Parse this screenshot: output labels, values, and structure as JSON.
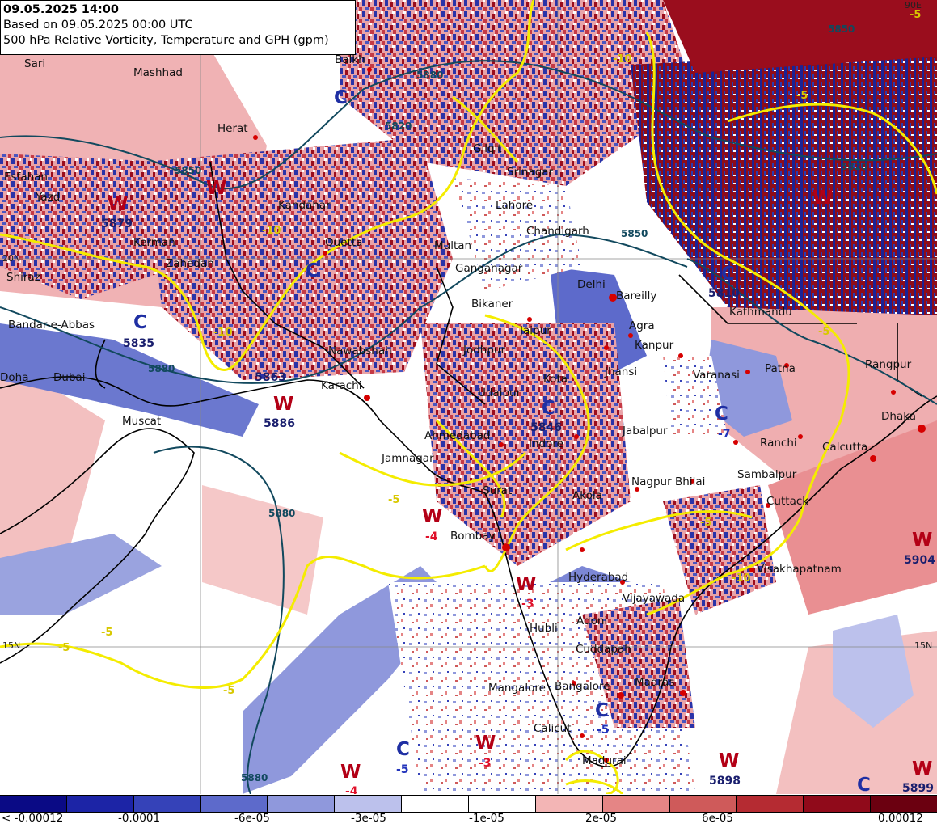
{
  "header": {
    "valid_time": "09.05.2025 14:00",
    "based_on": "Based on 09.05.2025 00:00 UTC",
    "product": "500 hPa Relative Vorticity, Temperature and GPH (gpm)"
  },
  "cities": [
    {
      "name": "Sari"
    },
    {
      "name": "Mashhad"
    },
    {
      "name": "Balkh"
    },
    {
      "name": "Herat"
    },
    {
      "name": "Esfahan"
    },
    {
      "name": "Yazd"
    },
    {
      "name": "Kandahar"
    },
    {
      "name": "Kerman"
    },
    {
      "name": "Quetta"
    },
    {
      "name": "Zahedan"
    },
    {
      "name": "Shiraz"
    },
    {
      "name": "Multan"
    },
    {
      "name": "Lahore"
    },
    {
      "name": "Chandigarh"
    },
    {
      "name": "Srinagar"
    },
    {
      "name": "Gilgit"
    },
    {
      "name": "Ganganagar"
    },
    {
      "name": "Bikaner"
    },
    {
      "name": "Delhi"
    },
    {
      "name": "Bareilly"
    },
    {
      "name": "Kathmandu"
    },
    {
      "name": "Bandar-e-Abbas"
    },
    {
      "name": "Nawabshah"
    },
    {
      "name": "Jodhpur"
    },
    {
      "name": "Jaipur"
    },
    {
      "name": "Agra"
    },
    {
      "name": "Kanpur"
    },
    {
      "name": "Jhansi"
    },
    {
      "name": "Kota"
    },
    {
      "name": "Udaipur"
    },
    {
      "name": "Varanasi"
    },
    {
      "name": "Patna"
    },
    {
      "name": "Rangpur"
    },
    {
      "name": "Doha"
    },
    {
      "name": "Dubai"
    },
    {
      "name": "Karachi"
    },
    {
      "name": "Muscat"
    },
    {
      "name": "Ahmedabad"
    },
    {
      "name": "Indore"
    },
    {
      "name": "Jabalpur"
    },
    {
      "name": "Ranchi"
    },
    {
      "name": "Calcutta"
    },
    {
      "name": "Dhaka"
    },
    {
      "name": "Jamnagar"
    },
    {
      "name": "Surat"
    },
    {
      "name": "Nagpur"
    },
    {
      "name": "Bhilai"
    },
    {
      "name": "Sambalpur"
    },
    {
      "name": "Akola"
    },
    {
      "name": "Cuttack"
    },
    {
      "name": "Bombay"
    },
    {
      "name": "Hyderabad"
    },
    {
      "name": "Visakhapatnam"
    },
    {
      "name": "Vijayawada"
    },
    {
      "name": "Adoni"
    },
    {
      "name": "Hubli"
    },
    {
      "name": "Cuddapah"
    },
    {
      "name": "Madras"
    },
    {
      "name": "Mangalore"
    },
    {
      "name": "Bangalore"
    },
    {
      "name": "Calicut"
    },
    {
      "name": "Madurai"
    }
  ],
  "systems": [
    {
      "letter": "W",
      "value": "5879",
      "kind": "gph"
    },
    {
      "letter": "W",
      "value": "",
      "kind": "gph"
    },
    {
      "letter": "C",
      "value": "5835",
      "kind": "gph"
    },
    {
      "letter": "C",
      "value": "",
      "kind": "gph"
    },
    {
      "letter": "C",
      "value": "",
      "kind": "gph"
    },
    {
      "letter": "W",
      "value": "5886",
      "kind": "gph"
    },
    {
      "letter": "C",
      "value": "5810",
      "kind": "gph"
    },
    {
      "letter": "W",
      "value": "",
      "kind": "gph"
    },
    {
      "letter": "C",
      "value": "5846",
      "kind": "gph"
    },
    {
      "letter": "C",
      "value": "-7",
      "kind": "temp-c"
    },
    {
      "letter": "W",
      "value": "-4",
      "kind": "temp"
    },
    {
      "letter": "W",
      "value": "-3",
      "kind": "temp"
    },
    {
      "letter": "W",
      "value": "5904",
      "kind": "gph"
    },
    {
      "letter": "C",
      "value": "-5",
      "kind": "temp-c"
    },
    {
      "letter": "C",
      "value": "-5",
      "kind": "temp-c"
    },
    {
      "letter": "W",
      "value": "-3",
      "kind": "temp"
    },
    {
      "letter": "W",
      "value": "-4",
      "kind": "temp"
    },
    {
      "letter": "W",
      "value": "5898",
      "kind": "gph"
    },
    {
      "letter": "W",
      "value": "5899",
      "kind": "gph"
    },
    {
      "letter": "C",
      "value": "",
      "kind": "gph"
    }
  ],
  "extra_values": [
    "5863"
  ],
  "gph_contour_labels": [
    "5880",
    "5850",
    "5820",
    "5880",
    "5880",
    "5850",
    "5850",
    "5820",
    "5880"
  ],
  "temp_contour_labels": [
    "-10",
    "-10",
    "-10",
    "-5",
    "-5",
    "-5",
    "-5",
    "-5",
    "-10",
    "-5",
    "-5",
    "-5"
  ],
  "lat_labels": [
    "90E",
    "20N",
    "15N",
    "15N"
  ],
  "legend": {
    "colors": [
      "#0a0a85",
      "#1c24a6",
      "#3542b8",
      "#5d6acb",
      "#8f98dc",
      "#bcc1ec",
      "#ffffff",
      "#ffffff",
      "#f3b5b5",
      "#e58585",
      "#cf5a5a",
      "#b52b32",
      "#900a1a",
      "#6b0010"
    ],
    "labels": [
      "< -0.00012",
      "-0.0001",
      "-6e-05",
      "-3e-05",
      "-1e-05",
      "2e-05",
      "6e-05",
      "0.00012"
    ]
  }
}
